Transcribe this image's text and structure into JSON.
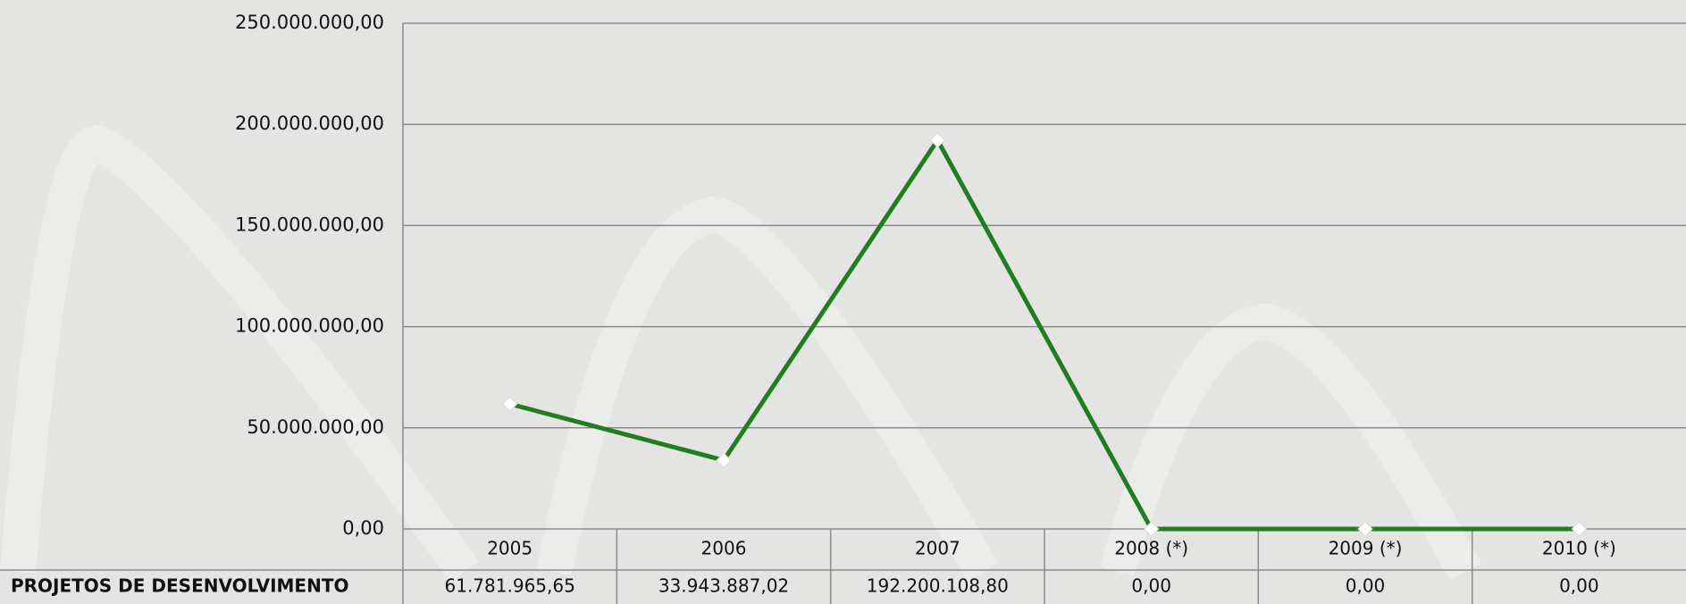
{
  "chart_data": {
    "type": "line",
    "categories": [
      "2005",
      "2006",
      "2007",
      "2008 (*)",
      "2009 (*)",
      "2010 (*)"
    ],
    "series": [
      {
        "name": "PROJETOS DE DESENVOLVIMENTO",
        "color": "#1f7f1f",
        "values": [
          61781965.65,
          33943887.02,
          192200108.8,
          0,
          0,
          0
        ],
        "value_labels": [
          "61.781.965,65",
          "33.943.887,02",
          "192.200.108,80",
          "0,00",
          "0,00",
          "0,00"
        ]
      }
    ],
    "ylim": [
      0,
      250000000
    ],
    "yticks": [
      {
        "value": 0,
        "label": "0,00"
      },
      {
        "value": 50000000,
        "label": "50.000.000,00"
      },
      {
        "value": 100000000,
        "label": "100.000.000,00"
      },
      {
        "value": 150000000,
        "label": "150.000.000,00"
      },
      {
        "value": 200000000,
        "label": "200.000.000,00"
      },
      {
        "value": 250000000,
        "label": "250.000.000,00"
      }
    ],
    "grid": true
  }
}
